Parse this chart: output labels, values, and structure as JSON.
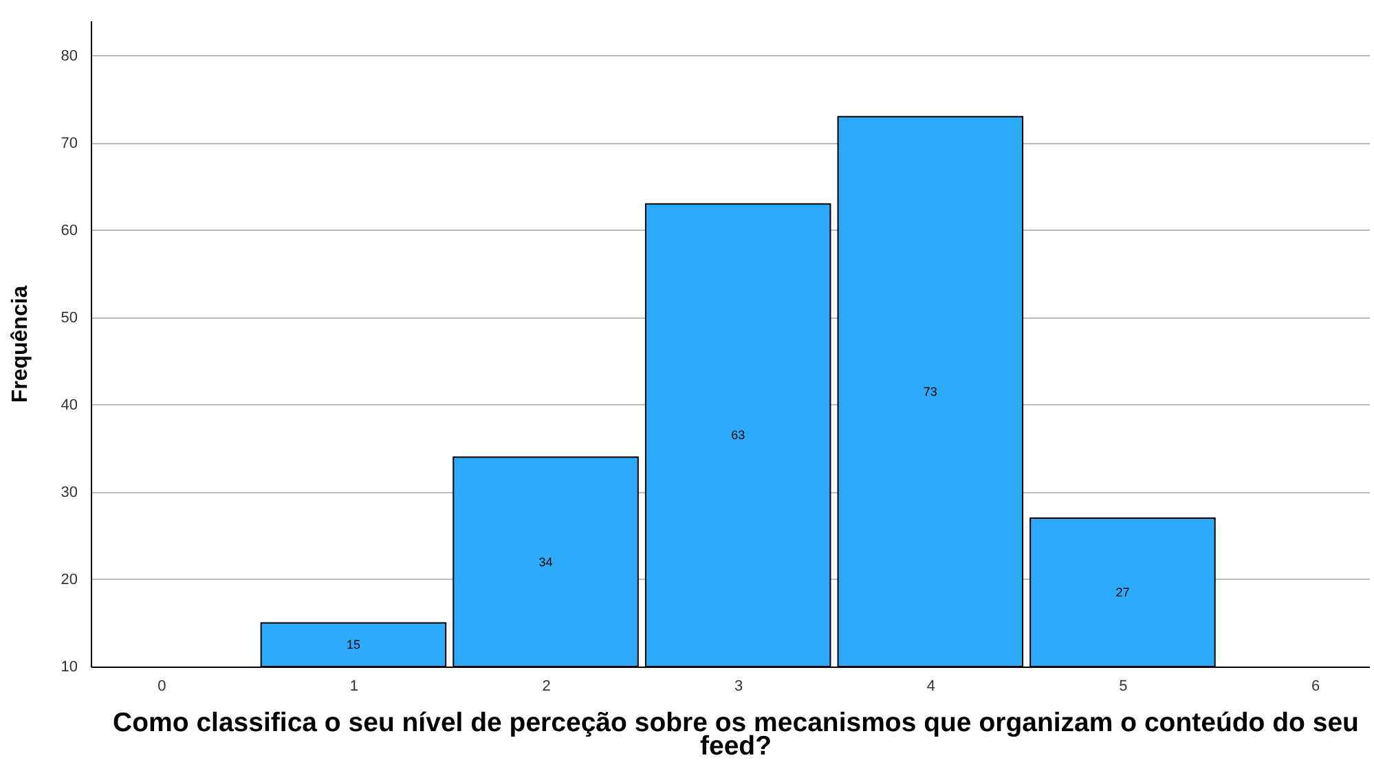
{
  "chart_data": {
    "type": "bar",
    "xlabel": "Como classifica o seu nível de perceção sobre os mecanismos que organizam o conteúdo do seu feed?",
    "ylabel": "Frequência",
    "x": [
      1,
      2,
      3,
      4,
      5
    ],
    "values": [
      15,
      34,
      63,
      73,
      27
    ],
    "color": "#2eaafa",
    "xlim": [
      -0.33,
      6.25
    ],
    "xticks": [
      0,
      1,
      2,
      3,
      4,
      5,
      6
    ],
    "ylim": [
      10,
      84
    ],
    "yticks": [
      10,
      20,
      30,
      40,
      50,
      60,
      70,
      80
    ],
    "grid": "y",
    "data_labels": true
  }
}
